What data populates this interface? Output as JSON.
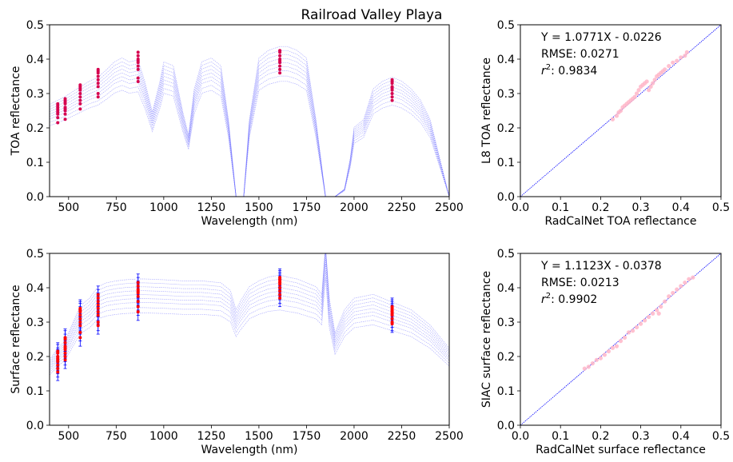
{
  "figure": {
    "title": "Railroad Valley Playa"
  },
  "chart_data": [
    {
      "id": "toa_spectrum",
      "type": "line",
      "title": "",
      "xlabel": "Wavelength (nm)",
      "ylabel": "TOA reflectance",
      "xlim": [
        400,
        2500
      ],
      "ylim": [
        0,
        0.5
      ],
      "xticks": [
        500,
        750,
        1000,
        1250,
        1500,
        1750,
        2000,
        2250,
        2500
      ],
      "yticks": [
        0.0,
        0.1,
        0.2,
        0.3,
        0.4,
        0.5
      ],
      "line_color": "#6f6fff",
      "marker_color": "#d6004f",
      "spectrum_template": {
        "x": [
          400,
          443,
          482,
          561,
          610,
          655,
          700,
          740,
          780,
          820,
          865,
          900,
          940,
          980,
          1000,
          1050,
          1100,
          1130,
          1160,
          1200,
          1250,
          1300,
          1340,
          1380,
          1420,
          1450,
          1500,
          1550,
          1610,
          1650,
          1700,
          1750,
          1800,
          1850,
          1880,
          1900,
          1950,
          1980,
          2000,
          2050,
          2100,
          2150,
          2200,
          2250,
          2300,
          2350,
          2400,
          2450,
          2500
        ],
        "y": [
          0.24,
          0.25,
          0.26,
          0.285,
          0.3,
          0.31,
          0.33,
          0.35,
          0.36,
          0.35,
          0.355,
          0.3,
          0.22,
          0.3,
          0.35,
          0.34,
          0.22,
          0.16,
          0.28,
          0.35,
          0.36,
          0.34,
          0.2,
          0.0,
          0.0,
          0.2,
          0.36,
          0.38,
          0.39,
          0.39,
          0.38,
          0.36,
          0.2,
          0.0,
          0.0,
          0.0,
          0.02,
          0.1,
          0.18,
          0.2,
          0.28,
          0.3,
          0.31,
          0.3,
          0.28,
          0.25,
          0.2,
          0.1,
          0.0
        ]
      },
      "spectrum_scales": [
        0.86,
        0.9,
        0.94,
        0.97,
        1.0,
        1.03,
        1.06,
        1.09,
        1.12
      ],
      "points": [
        {
          "x": 443,
          "y": [
            0.215,
            0.23,
            0.24,
            0.245,
            0.25,
            0.255,
            0.26,
            0.265,
            0.27
          ]
        },
        {
          "x": 482,
          "y": [
            0.225,
            0.24,
            0.25,
            0.255,
            0.26,
            0.27,
            0.275,
            0.28,
            0.285
          ]
        },
        {
          "x": 561,
          "y": [
            0.255,
            0.27,
            0.28,
            0.29,
            0.3,
            0.31,
            0.315,
            0.32,
            0.325
          ]
        },
        {
          "x": 655,
          "y": [
            0.29,
            0.3,
            0.32,
            0.33,
            0.34,
            0.35,
            0.36,
            0.365,
            0.37
          ]
        },
        {
          "x": 865,
          "y": [
            0.335,
            0.345,
            0.37,
            0.38,
            0.39,
            0.395,
            0.4,
            0.41,
            0.42
          ]
        },
        {
          "x": 1610,
          "y": [
            0.36,
            0.37,
            0.38,
            0.39,
            0.395,
            0.4,
            0.41,
            0.42,
            0.425
          ]
        },
        {
          "x": 2200,
          "y": [
            0.28,
            0.29,
            0.3,
            0.31,
            0.315,
            0.32,
            0.33,
            0.335,
            0.34
          ]
        }
      ]
    },
    {
      "id": "toa_scatter",
      "type": "scatter",
      "title": "",
      "xlabel": "RadCalNet TOA reflectance",
      "ylabel": "L8 TOA reflectance",
      "xlim": [
        0,
        0.5
      ],
      "ylim": [
        0,
        0.5
      ],
      "xticks": [
        0.0,
        0.1,
        0.2,
        0.3,
        0.4,
        0.5
      ],
      "yticks": [
        0.0,
        0.1,
        0.2,
        0.3,
        0.4,
        0.5
      ],
      "annotation": {
        "equation": "Y = 1.0771X - 0.0226",
        "rmse": "RMSE: 0.0271",
        "r2_prefix": "r",
        "r2_sup": "2",
        "r2_value": ": 0.9834"
      },
      "identity_line": [
        [
          0,
          0
        ],
        [
          0.5,
          0.5
        ]
      ],
      "line_color": "#0000ff",
      "point_color": "#ffb6c8",
      "points": [
        [
          0.23,
          0.225
        ],
        [
          0.24,
          0.235
        ],
        [
          0.245,
          0.245
        ],
        [
          0.25,
          0.25
        ],
        [
          0.255,
          0.26
        ],
        [
          0.26,
          0.265
        ],
        [
          0.265,
          0.27
        ],
        [
          0.27,
          0.275
        ],
        [
          0.275,
          0.28
        ],
        [
          0.28,
          0.285
        ],
        [
          0.285,
          0.29
        ],
        [
          0.29,
          0.3
        ],
        [
          0.295,
          0.31
        ],
        [
          0.3,
          0.32
        ],
        [
          0.305,
          0.325
        ],
        [
          0.31,
          0.33
        ],
        [
          0.315,
          0.335
        ],
        [
          0.32,
          0.31
        ],
        [
          0.325,
          0.32
        ],
        [
          0.33,
          0.33
        ],
        [
          0.335,
          0.34
        ],
        [
          0.34,
          0.35
        ],
        [
          0.345,
          0.355
        ],
        [
          0.35,
          0.36
        ],
        [
          0.355,
          0.365
        ],
        [
          0.36,
          0.37
        ],
        [
          0.37,
          0.38
        ],
        [
          0.38,
          0.39
        ],
        [
          0.39,
          0.395
        ],
        [
          0.4,
          0.405
        ],
        [
          0.41,
          0.41
        ],
        [
          0.415,
          0.42
        ]
      ]
    },
    {
      "id": "surface_spectrum",
      "type": "line",
      "title": "",
      "xlabel": "Wavelength (nm)",
      "ylabel": "Surface reflectance",
      "xlim": [
        400,
        2500
      ],
      "ylim": [
        0,
        0.5
      ],
      "xticks": [
        500,
        750,
        1000,
        1250,
        1500,
        1750,
        2000,
        2250,
        2500
      ],
      "yticks": [
        0.0,
        0.1,
        0.2,
        0.3,
        0.4,
        0.5
      ],
      "line_color": "#6f6fff",
      "marker_color": "#ff0000",
      "errorbar_color": "#0000ff",
      "spectrum_template": {
        "x": [
          400,
          443,
          482,
          561,
          610,
          655,
          700,
          750,
          800,
          865,
          900,
          1000,
          1100,
          1200,
          1300,
          1350,
          1380,
          1400,
          1450,
          1500,
          1550,
          1610,
          1650,
          1700,
          1750,
          1800,
          1830,
          1850,
          1870,
          1900,
          1950,
          2000,
          2100,
          2200,
          2300,
          2400,
          2450,
          2500
        ],
        "y": [
          0.17,
          0.2,
          0.22,
          0.31,
          0.33,
          0.36,
          0.37,
          0.375,
          0.378,
          0.38,
          0.38,
          0.378,
          0.375,
          0.375,
          0.37,
          0.35,
          0.3,
          0.32,
          0.36,
          0.375,
          0.385,
          0.39,
          0.385,
          0.38,
          0.37,
          0.36,
          0.34,
          0.5,
          0.33,
          0.24,
          0.3,
          0.33,
          0.34,
          0.32,
          0.3,
          0.26,
          0.23,
          0.2
        ]
      },
      "spectrum_scales": [
        0.86,
        0.9,
        0.94,
        0.97,
        1.0,
        1.03,
        1.06,
        1.09,
        1.12
      ],
      "points": [
        {
          "x": 443,
          "y": [
            0.155,
            0.165,
            0.175,
            0.185,
            0.19,
            0.195,
            0.2,
            0.21,
            0.215
          ],
          "err": 0.025
        },
        {
          "x": 482,
          "y": [
            0.19,
            0.2,
            0.21,
            0.22,
            0.225,
            0.23,
            0.24,
            0.25,
            0.255
          ],
          "err": 0.025
        },
        {
          "x": 561,
          "y": [
            0.255,
            0.27,
            0.29,
            0.3,
            0.31,
            0.32,
            0.33,
            0.335,
            0.34
          ],
          "err": 0.025
        },
        {
          "x": 655,
          "y": [
            0.29,
            0.3,
            0.32,
            0.33,
            0.34,
            0.35,
            0.36,
            0.37,
            0.38
          ],
          "err": 0.025
        },
        {
          "x": 865,
          "y": [
            0.33,
            0.345,
            0.36,
            0.375,
            0.385,
            0.39,
            0.395,
            0.405,
            0.415
          ],
          "err": 0.025
        },
        {
          "x": 1610,
          "y": [
            0.37,
            0.38,
            0.39,
            0.4,
            0.41,
            0.415,
            0.42,
            0.425,
            0.43
          ],
          "err": 0.025
        },
        {
          "x": 2200,
          "y": [
            0.295,
            0.3,
            0.31,
            0.32,
            0.325,
            0.33,
            0.335,
            0.34,
            0.345
          ],
          "err": 0.025
        }
      ]
    },
    {
      "id": "surface_scatter",
      "type": "scatter",
      "title": "",
      "xlabel": "RadCalNet surface reflectance",
      "ylabel": "SIAC surface reflectance",
      "xlim": [
        0,
        0.5
      ],
      "ylim": [
        0,
        0.5
      ],
      "xticks": [
        0.0,
        0.1,
        0.2,
        0.3,
        0.4,
        0.5
      ],
      "yticks": [
        0.0,
        0.1,
        0.2,
        0.3,
        0.4,
        0.5
      ],
      "annotation": {
        "equation": "Y = 1.1123X - 0.0378",
        "rmse": "RMSE: 0.0213",
        "r2_prefix": "r",
        "r2_sup": "2",
        "r2_value": ": 0.9902"
      },
      "identity_line": [
        [
          0,
          0
        ],
        [
          0.5,
          0.5
        ]
      ],
      "line_color": "#0000ff",
      "point_color": "#ffb6c8",
      "points": [
        [
          0.16,
          0.165
        ],
        [
          0.17,
          0.17
        ],
        [
          0.18,
          0.18
        ],
        [
          0.19,
          0.19
        ],
        [
          0.2,
          0.195
        ],
        [
          0.21,
          0.205
        ],
        [
          0.22,
          0.215
        ],
        [
          0.23,
          0.225
        ],
        [
          0.24,
          0.23
        ],
        [
          0.25,
          0.245
        ],
        [
          0.26,
          0.255
        ],
        [
          0.27,
          0.27
        ],
        [
          0.28,
          0.275
        ],
        [
          0.29,
          0.285
        ],
        [
          0.3,
          0.295
        ],
        [
          0.31,
          0.305
        ],
        [
          0.32,
          0.315
        ],
        [
          0.33,
          0.325
        ],
        [
          0.34,
          0.335
        ],
        [
          0.345,
          0.325
        ],
        [
          0.35,
          0.345
        ],
        [
          0.36,
          0.36
        ],
        [
          0.37,
          0.375
        ],
        [
          0.38,
          0.385
        ],
        [
          0.39,
          0.395
        ],
        [
          0.4,
          0.405
        ],
        [
          0.41,
          0.415
        ],
        [
          0.42,
          0.425
        ],
        [
          0.43,
          0.43
        ]
      ]
    }
  ]
}
